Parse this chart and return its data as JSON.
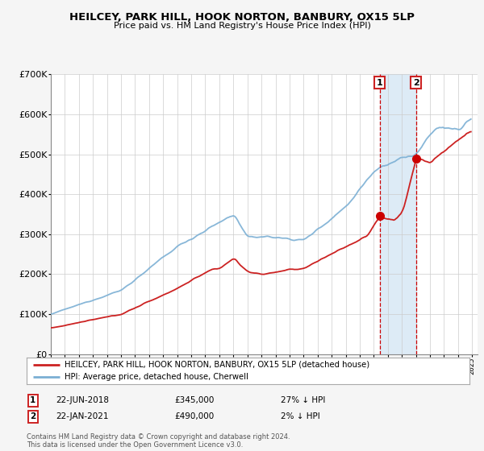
{
  "title": "HEILCEY, PARK HILL, HOOK NORTON, BANBURY, OX15 5LP",
  "subtitle": "Price paid vs. HM Land Registry's House Price Index (HPI)",
  "legend_line1": "HEILCEY, PARK HILL, HOOK NORTON, BANBURY, OX15 5LP (detached house)",
  "legend_line2": "HPI: Average price, detached house, Cherwell",
  "marker1_date": "22-JUN-2018",
  "marker1_price": 345000,
  "marker1_label": "27% ↓ HPI",
  "marker2_date": "22-JAN-2021",
  "marker2_price": 490000,
  "marker2_label": "2% ↓ HPI",
  "footnote": "Contains HM Land Registry data © Crown copyright and database right 2024.\nThis data is licensed under the Open Government Licence v3.0.",
  "hpi_color": "#7bafd4",
  "price_color": "#cc2222",
  "marker_color": "#cc0000",
  "background_color": "#f5f5f5",
  "plot_bg": "#ffffff",
  "shade_color": "#d8e8f5",
  "grid_color": "#cccccc",
  "ylim": [
    0,
    700000
  ],
  "yticks": [
    0,
    100000,
    200000,
    300000,
    400000,
    500000,
    600000,
    700000
  ],
  "ylabel_fmt": [
    "£0",
    "£100K",
    "£200K",
    "£300K",
    "£400K",
    "£500K",
    "£600K",
    "£700K"
  ],
  "start_year": 1995,
  "end_year": 2025
}
